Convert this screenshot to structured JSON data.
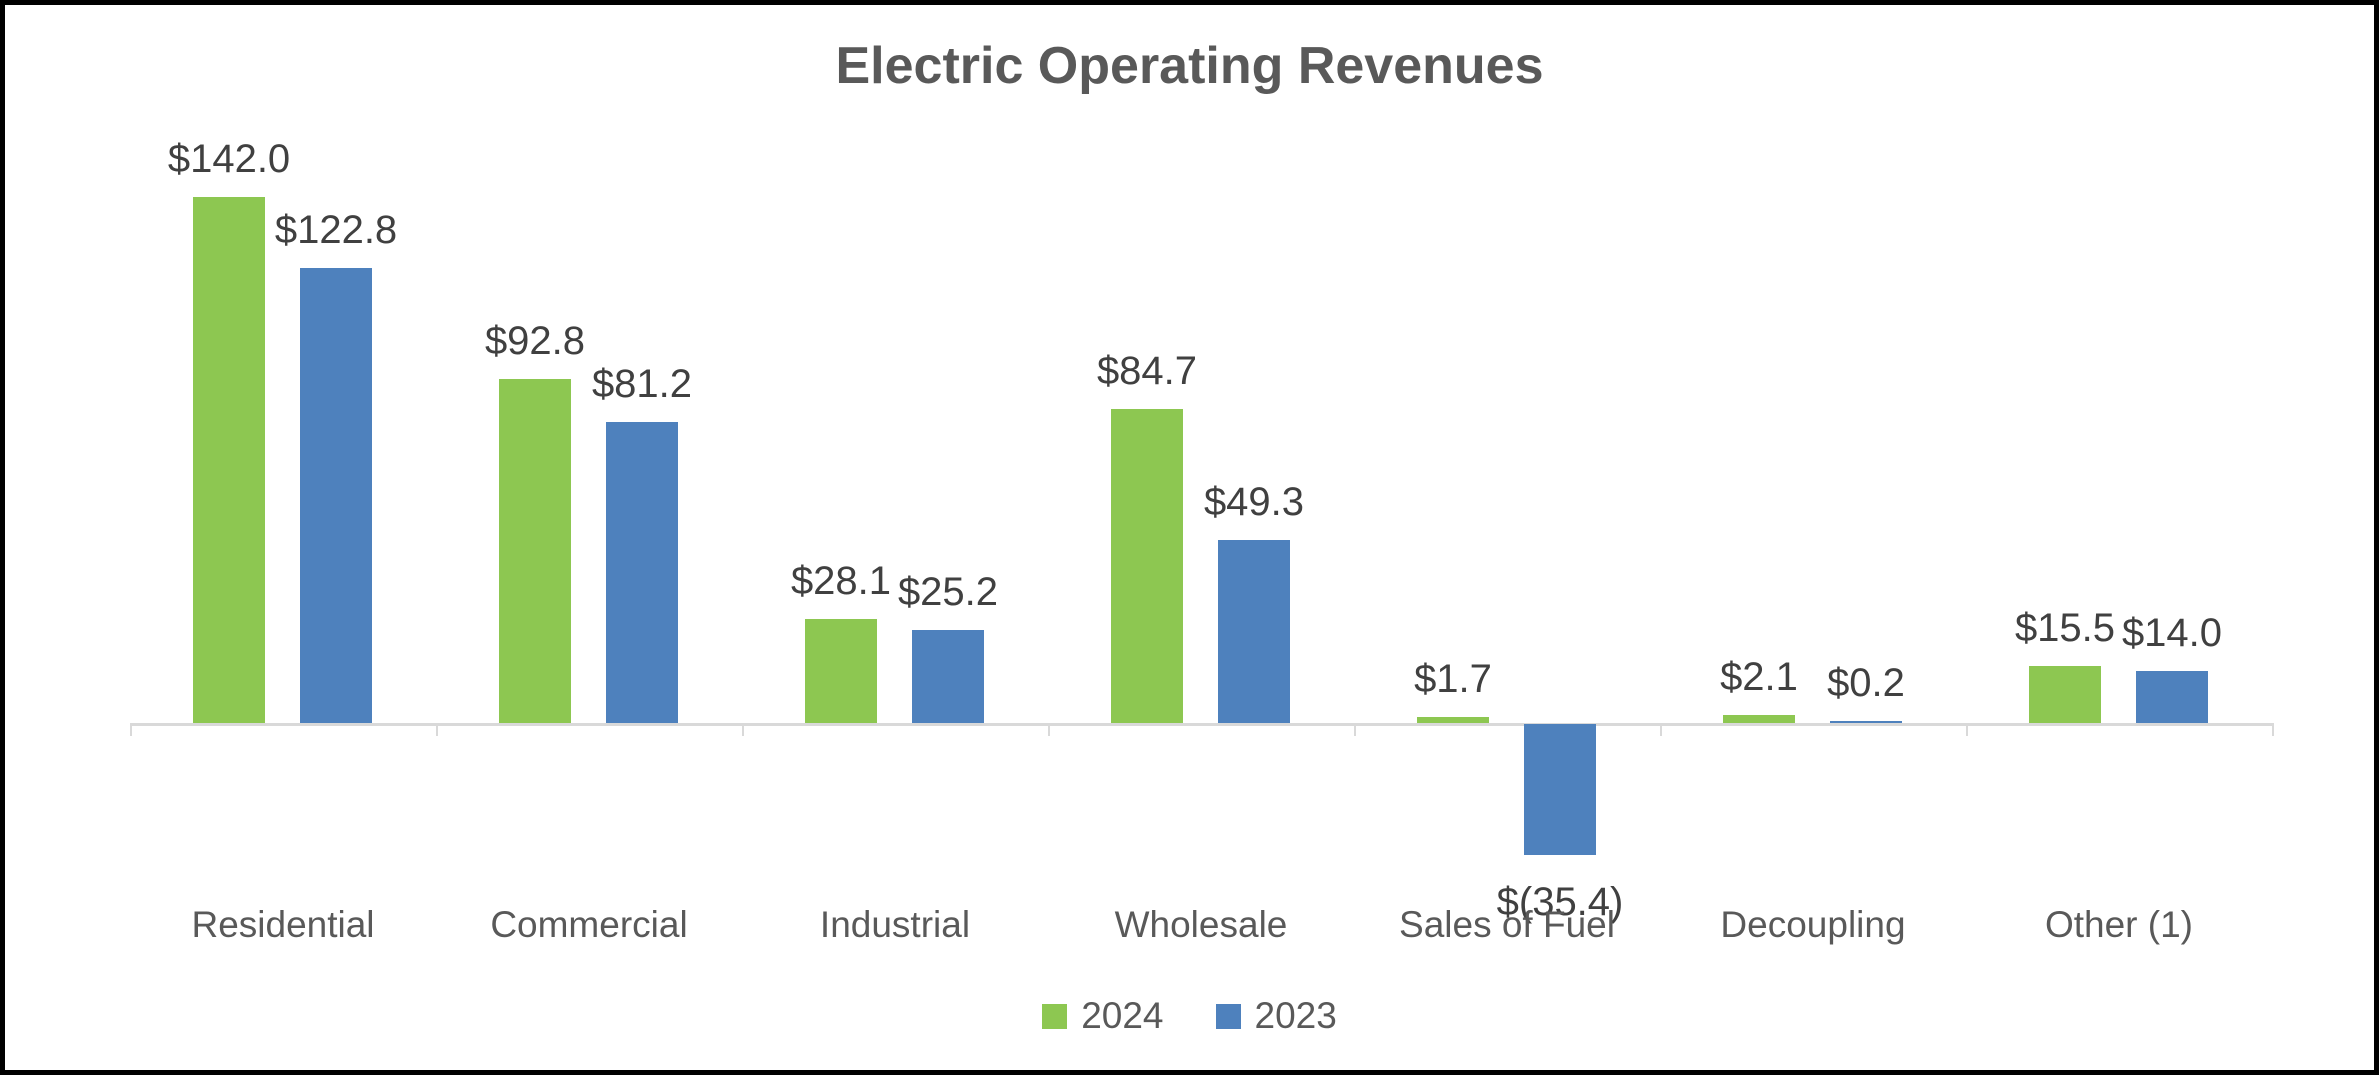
{
  "chart_data": {
    "type": "bar",
    "title": "Electric Operating Revenues",
    "categories": [
      "Residential",
      "Commercial",
      "Industrial",
      "Wholesale",
      "Sales of Fuel",
      "Decoupling",
      "Other (1)"
    ],
    "series": [
      {
        "name": "2024",
        "color": "#8dc751",
        "values": [
          142.0,
          92.8,
          28.1,
          84.7,
          1.7,
          2.1,
          15.5
        ],
        "labels": [
          "$142.0",
          "$92.8",
          "$28.1",
          "$84.7",
          "$1.7",
          "$2.1",
          "$15.5"
        ]
      },
      {
        "name": "2023",
        "color": "#4e81bd",
        "values": [
          122.8,
          81.2,
          25.2,
          49.3,
          -35.4,
          0.2,
          14.0
        ],
        "labels": [
          "$122.8",
          "$81.2",
          "$25.2",
          "$49.3",
          "$(35.4)",
          "$0.2",
          "$14.0"
        ]
      }
    ],
    "legend_position": "bottom",
    "legend_entries": [
      "2024",
      "2023"
    ],
    "grid": false,
    "y_axis_visible": false,
    "axis_color": "#d9d9d9",
    "title_color": "#595959",
    "value_label_color": "#404040",
    "category_label_color": "#595959",
    "value_range_shown": [
      -35.4,
      142.0
    ]
  }
}
